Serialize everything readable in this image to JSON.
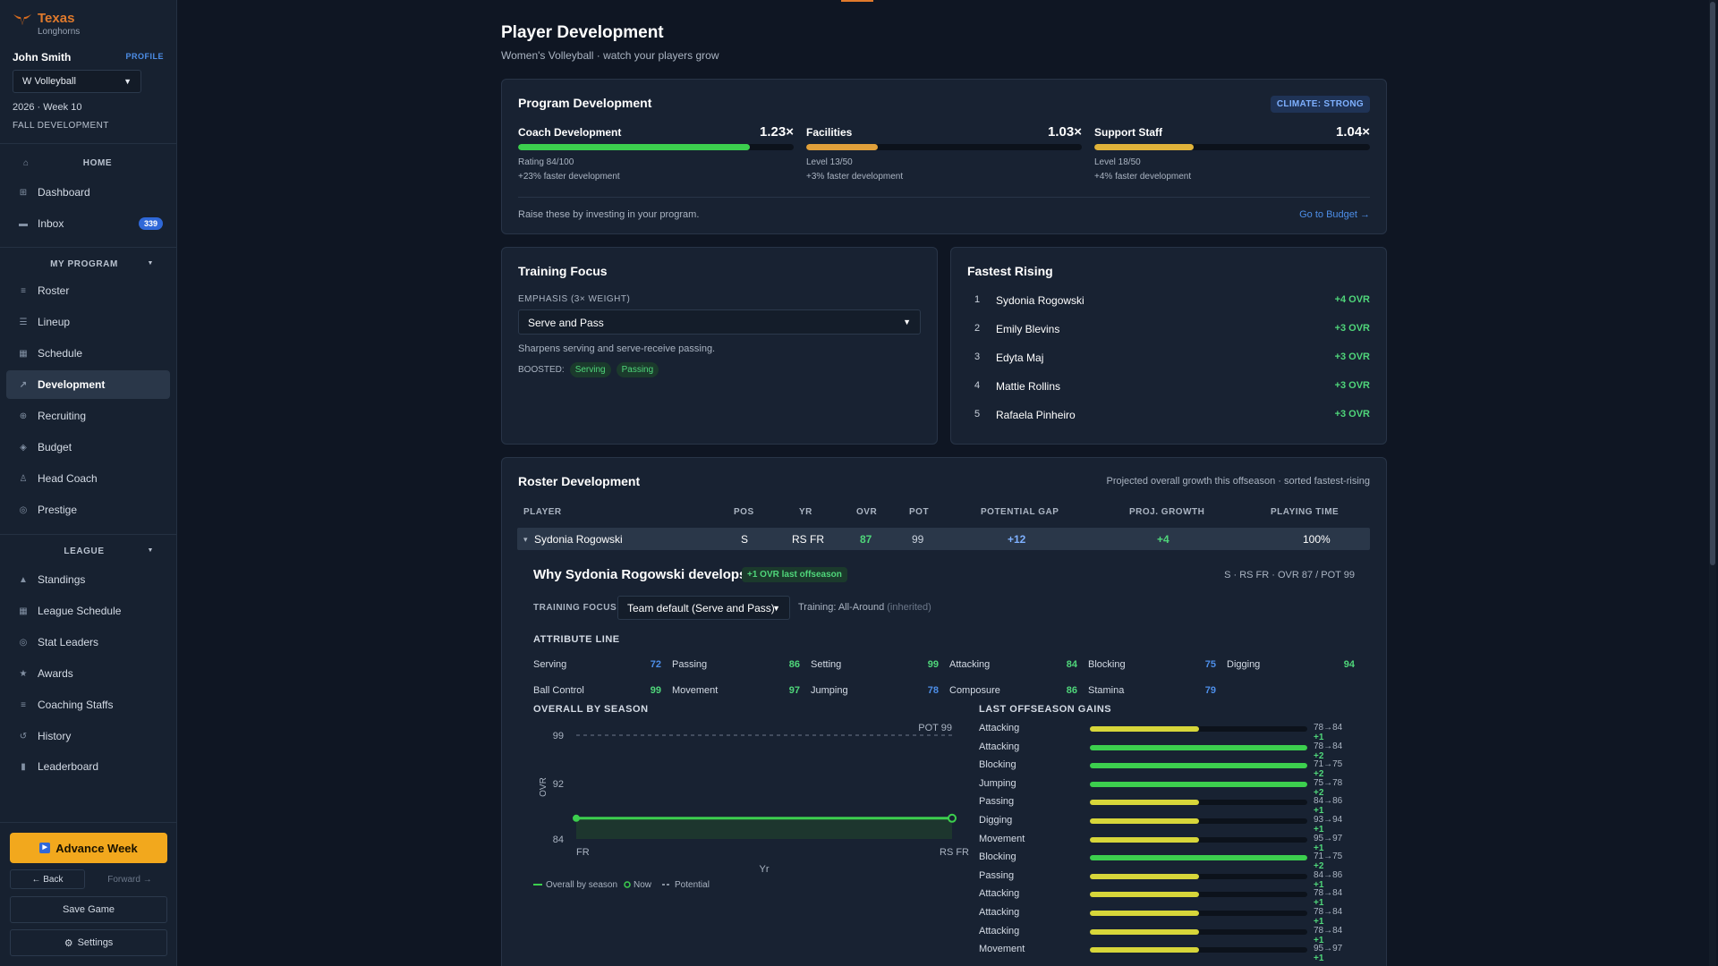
{
  "sidebar": {
    "brand_title": "Texas",
    "brand_sub": "Longhorns",
    "user_name": "John Smith",
    "profile_label": "PROFILE",
    "sport": "W Volleyball",
    "season": "2026 · Week 10",
    "phase": "FALL DEVELOPMENT",
    "home_label": "HOME",
    "dashboard": "Dashboard",
    "inbox": "Inbox",
    "inbox_count": "339",
    "my_program_label": "MY PROGRAM",
    "program_items": [
      "Roster",
      "Lineup",
      "Schedule",
      "Development",
      "Recruiting",
      "Budget",
      "Head Coach",
      "Prestige"
    ],
    "league_label": "LEAGUE",
    "league_items": [
      "Standings",
      "League Schedule",
      "Stat Leaders",
      "Awards",
      "Coaching Staffs",
      "History",
      "Leaderboard"
    ],
    "advance_week": "Advance Week",
    "back": "← Back",
    "forward": "Forward →",
    "save_game": "Save Game",
    "settings": "Settings"
  },
  "page": {
    "title": "Player Development",
    "subtitle": "Women's Volleyball · watch your players grow"
  },
  "program_development": {
    "title": "Program Development",
    "climate": "CLIMATE: STRONG",
    "items": [
      {
        "name": "Coach Development",
        "multiplier": "1.23×",
        "line1": "Rating 84/100",
        "line2": "+23% faster development",
        "progress": 0.84,
        "color": "#3ccf4e"
      },
      {
        "name": "Facilities",
        "multiplier": "1.03×",
        "line1": "Level 13/50",
        "line2": "+3% faster development",
        "progress": 0.26,
        "color": "#e0a03a"
      },
      {
        "name": "Support Staff",
        "multiplier": "1.04×",
        "line1": "Level 18/50",
        "line2": "+4% faster development",
        "progress": 0.36,
        "color": "#e0b33a"
      }
    ],
    "note": "Raise these by investing in your program.",
    "budget_link": "Go to Budget →"
  },
  "training_focus": {
    "title": "Training Focus",
    "emphasis_label": "EMPHASIS (3× WEIGHT)",
    "selected": "Serve and Pass",
    "description": "Sharpens serving and serve-receive passing.",
    "boosted_label": "BOOSTED:",
    "boosted": [
      "Serving",
      "Passing"
    ]
  },
  "fastest_rising": {
    "title": "Fastest Rising",
    "players": [
      {
        "rank": "1",
        "name": "Sydonia Rogowski",
        "gain": "+4 OVR"
      },
      {
        "rank": "2",
        "name": "Emily Blevins",
        "gain": "+3 OVR"
      },
      {
        "rank": "3",
        "name": "Edyta Maj",
        "gain": "+3 OVR"
      },
      {
        "rank": "4",
        "name": "Mattie Rollins",
        "gain": "+3 OVR"
      },
      {
        "rank": "5",
        "name": "Rafaela Pinheiro",
        "gain": "+3 OVR"
      }
    ]
  },
  "roster": {
    "title": "Roster Development",
    "note": "Projected overall growth this offseason · sorted fastest-rising",
    "headers": [
      "PLAYER",
      "POS",
      "YR",
      "OVR",
      "POT",
      "POTENTIAL GAP",
      "PROJ. GROWTH",
      "PLAYING TIME"
    ],
    "row": {
      "caret": "▾",
      "player": "Sydonia Rogowski",
      "pos": "S",
      "yr": "RS FR",
      "ovr": "87",
      "pot": "99",
      "gap": "+12",
      "growth": "+4",
      "playing_time": "100%"
    }
  },
  "detail": {
    "title": "Why Sydonia Rogowski develops",
    "last_chip": "+1 OVR last offseason",
    "meta": "S · RS FR · OVR 87 / POT 99",
    "training_focus_label": "TRAINING FOCUS",
    "training_select": "Team default (Serve and Pass)",
    "training_note": "Training: All-Around",
    "training_inherited": "(inherited)",
    "attribute_line_label": "ATTRIBUTE LINE",
    "attributes": [
      {
        "name": "Serving",
        "value": "72",
        "color": "#4d8ee8"
      },
      {
        "name": "Passing",
        "value": "86",
        "color": "#4fd67a"
      },
      {
        "name": "Setting",
        "value": "99",
        "color": "#4fd67a"
      },
      {
        "name": "Attacking",
        "value": "84",
        "color": "#4fd67a"
      },
      {
        "name": "Blocking",
        "value": "75",
        "color": "#4d8ee8"
      },
      {
        "name": "Digging",
        "value": "94",
        "color": "#4fd67a"
      },
      {
        "name": "Ball Control",
        "value": "99",
        "color": "#4fd67a"
      },
      {
        "name": "Movement",
        "value": "97",
        "color": "#4fd67a"
      },
      {
        "name": "Jumping",
        "value": "78",
        "color": "#4d8ee8"
      },
      {
        "name": "Composure",
        "value": "86",
        "color": "#4fd67a"
      },
      {
        "name": "Stamina",
        "value": "79",
        "color": "#4d8ee8"
      }
    ],
    "overall_label": "OVERALL BY SEASON",
    "gains_label": "LAST OFFSEASON GAINS",
    "gains": [
      {
        "attr": "Attacking",
        "text": "78→84",
        "gain": "+1",
        "fill": 0.5,
        "color": "#d7d63a"
      },
      {
        "attr": "Attacking",
        "text": "78→84",
        "gain": "+2",
        "fill": 1.0,
        "color": "#3ccf4e"
      },
      {
        "attr": "Blocking",
        "text": "71→75",
        "gain": "+2",
        "fill": 1.0,
        "color": "#3ccf4e"
      },
      {
        "attr": "Jumping",
        "text": "75→78",
        "gain": "+2",
        "fill": 1.0,
        "color": "#3ccf4e"
      },
      {
        "attr": "Passing",
        "text": "84→86",
        "gain": "+1",
        "fill": 0.5,
        "color": "#d7d63a"
      },
      {
        "attr": "Digging",
        "text": "93→94",
        "gain": "+1",
        "fill": 0.5,
        "color": "#d7d63a"
      },
      {
        "attr": "Movement",
        "text": "95→97",
        "gain": "+1",
        "fill": 0.5,
        "color": "#d7d63a"
      },
      {
        "attr": "Blocking",
        "text": "71→75",
        "gain": "+2",
        "fill": 1.0,
        "color": "#3ccf4e"
      },
      {
        "attr": "Passing",
        "text": "84→86",
        "gain": "+1",
        "fill": 0.5,
        "color": "#d7d63a"
      },
      {
        "attr": "Attacking",
        "text": "78→84",
        "gain": "+1",
        "fill": 0.5,
        "color": "#d7d63a"
      },
      {
        "attr": "Attacking",
        "text": "78→84",
        "gain": "+1",
        "fill": 0.5,
        "color": "#d7d63a"
      },
      {
        "attr": "Attacking",
        "text": "78→84",
        "gain": "+1",
        "fill": 0.5,
        "color": "#d7d63a"
      },
      {
        "attr": "Movement",
        "text": "95→97",
        "gain": "+1",
        "fill": 0.5,
        "color": "#d7d63a"
      }
    ]
  },
  "chart_data": {
    "type": "line",
    "categories": [
      "FR",
      "RS FR"
    ],
    "series": [
      {
        "name": "Overall by season",
        "values": [
          87,
          87
        ]
      }
    ],
    "potential": 99,
    "potential_label": "POT 99",
    "xlabel": "Yr",
    "ylabel": "OVR",
    "yticks": [
      84,
      92,
      99
    ],
    "ylim": [
      84,
      99
    ],
    "legend": [
      "Overall by season",
      "Now",
      "Potential"
    ]
  }
}
